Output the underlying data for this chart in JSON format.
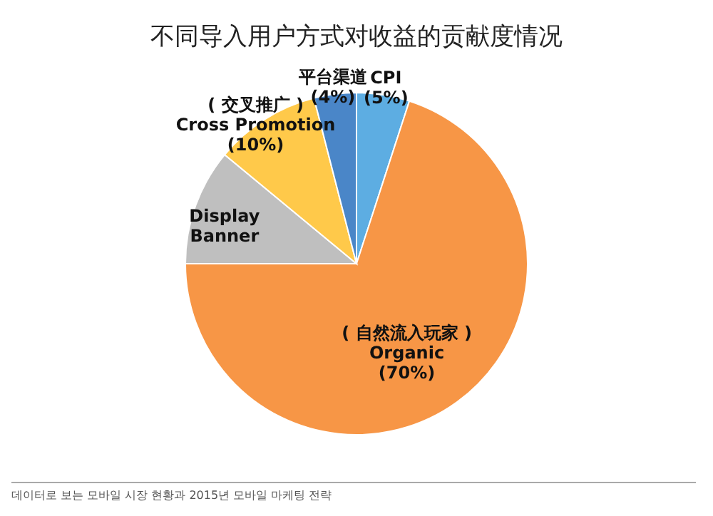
{
  "chart_data": {
    "type": "pie",
    "title": "不同导入用户方式对收益的贡献度情况",
    "categories": [
      "CPI",
      "( 自然流入玩家 )\nOrganic",
      "Display\nBanner",
      "( 交叉推广 )\nCross Promotion",
      "平台渠道"
    ],
    "values": [
      5,
      70,
      11,
      10,
      4
    ],
    "value_labels": [
      "(5%)",
      "(70%)",
      null,
      "(10%)",
      "(4%)"
    ],
    "colors": [
      "#5dade2",
      "#f79646",
      "#bfbfbf",
      "#ffc94a",
      "#4a86c8"
    ],
    "annotations": [
      "데이터로 보는 모바일 시장 현황과 2015년 모바일 마케팅 전략"
    ]
  }
}
